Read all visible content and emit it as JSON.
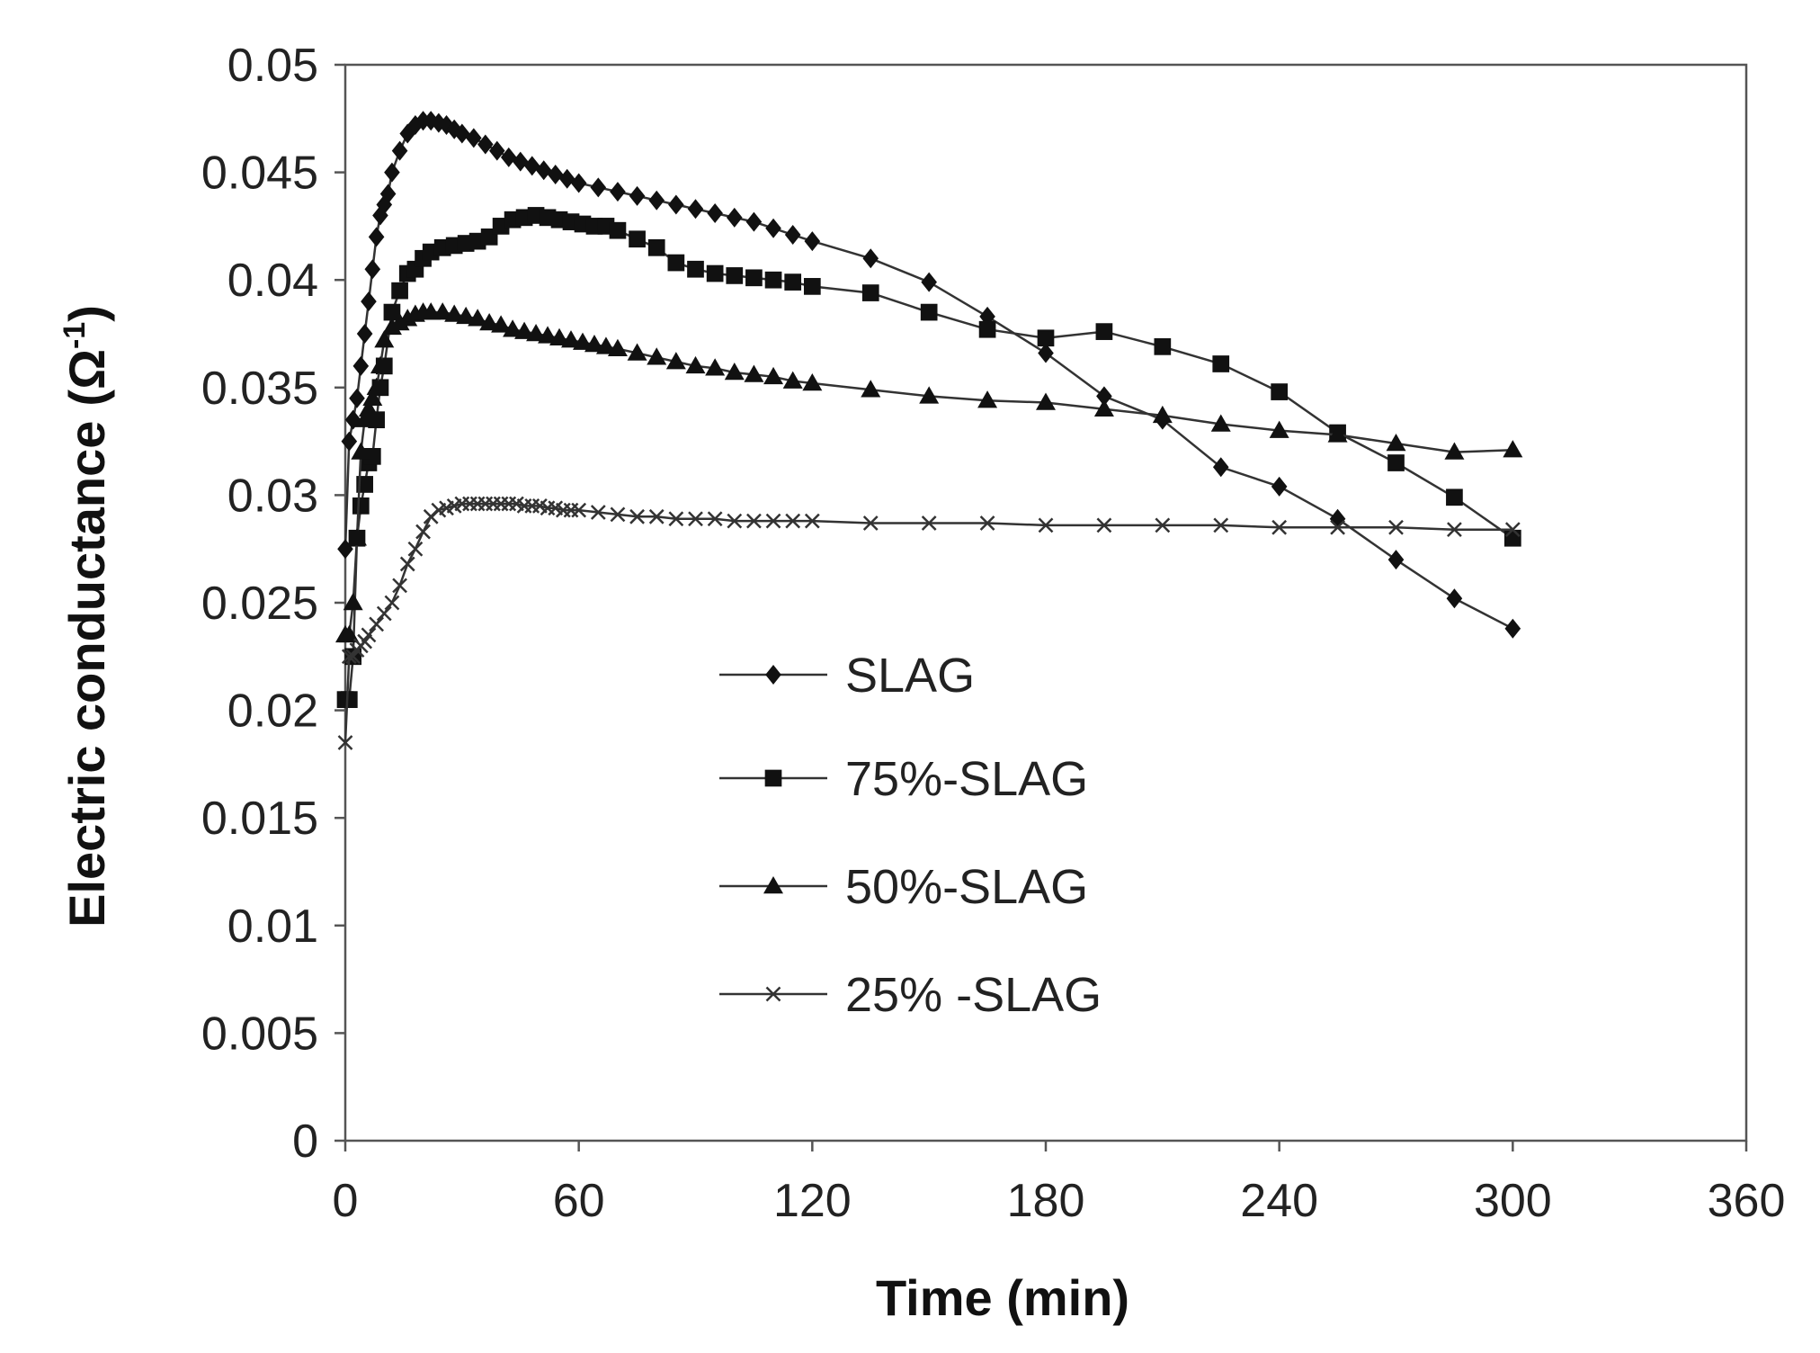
{
  "chart_data": {
    "type": "line",
    "title": "",
    "xlabel": "Time (min)",
    "ylabel": "Electric conductance",
    "ylabel_unit_base": "Ω",
    "ylabel_unit_exp": "-1",
    "xlim": [
      0,
      360
    ],
    "ylim": [
      0,
      0.05
    ],
    "xticks": [
      0,
      60,
      120,
      180,
      240,
      300,
      360
    ],
    "ytick_labels": [
      "0",
      "0.005",
      "0.01",
      "0.015",
      "0.02",
      "0.025",
      "0.03",
      "0.035",
      "0.04",
      "0.045",
      "0.05"
    ],
    "grid": false,
    "legend_position": "center-left",
    "series": [
      {
        "name": "SLAG",
        "marker": "diamond",
        "x": [
          0,
          1,
          2,
          3,
          4,
          5,
          6,
          7,
          8,
          9,
          10,
          11,
          12,
          14,
          16,
          18,
          20,
          22,
          24,
          26,
          28,
          30,
          33,
          36,
          39,
          42,
          45,
          48,
          51,
          54,
          57,
          60,
          65,
          70,
          75,
          80,
          85,
          90,
          95,
          100,
          105,
          110,
          115,
          120,
          135,
          150,
          165,
          180,
          195,
          210,
          225,
          240,
          255,
          270,
          285,
          300
        ],
        "values": [
          0.0275,
          0.0325,
          0.0335,
          0.0345,
          0.036,
          0.0375,
          0.039,
          0.0405,
          0.042,
          0.043,
          0.0435,
          0.044,
          0.045,
          0.046,
          0.0468,
          0.0472,
          0.0474,
          0.0474,
          0.0473,
          0.0472,
          0.047,
          0.0468,
          0.0466,
          0.0463,
          0.046,
          0.0457,
          0.0455,
          0.0453,
          0.0451,
          0.0449,
          0.0447,
          0.0445,
          0.0443,
          0.0441,
          0.0439,
          0.0437,
          0.0435,
          0.0433,
          0.0431,
          0.0429,
          0.0427,
          0.0424,
          0.0421,
          0.0418,
          0.041,
          0.0399,
          0.0383,
          0.0366,
          0.0346,
          0.0335,
          0.0313,
          0.0304,
          0.0289,
          0.027,
          0.0252,
          0.0238
        ]
      },
      {
        "name": "75%-SLAG",
        "marker": "square",
        "x": [
          0,
          1,
          2,
          3,
          4,
          5,
          6,
          7,
          8,
          9,
          10,
          12,
          14,
          16,
          18,
          20,
          22,
          25,
          28,
          31,
          34,
          37,
          40,
          43,
          46,
          49,
          52,
          55,
          58,
          61,
          64,
          67,
          70,
          75,
          80,
          85,
          90,
          95,
          100,
          105,
          110,
          115,
          120,
          135,
          150,
          165,
          180,
          195,
          210,
          225,
          240,
          255,
          270,
          285,
          300
        ],
        "values": [
          0.0205,
          0.0205,
          0.0225,
          0.028,
          0.0295,
          0.0305,
          0.0315,
          0.0318,
          0.0335,
          0.035,
          0.036,
          0.0385,
          0.0395,
          0.0403,
          0.0405,
          0.041,
          0.0413,
          0.0415,
          0.0416,
          0.0417,
          0.0418,
          0.042,
          0.0425,
          0.0428,
          0.0429,
          0.043,
          0.0429,
          0.0428,
          0.0427,
          0.0426,
          0.0425,
          0.0425,
          0.0423,
          0.0419,
          0.0415,
          0.0408,
          0.0405,
          0.0403,
          0.0402,
          0.0401,
          0.04,
          0.0399,
          0.0397,
          0.0394,
          0.0385,
          0.0377,
          0.0373,
          0.0376,
          0.0369,
          0.0361,
          0.0348,
          0.0329,
          0.0315,
          0.0299,
          0.028
        ]
      },
      {
        "name": "50%-SLAG",
        "marker": "triangle",
        "x": [
          0,
          1,
          2,
          3,
          4,
          5,
          6,
          7,
          8,
          9,
          10,
          12,
          14,
          16,
          18,
          20,
          22,
          25,
          28,
          31,
          34,
          37,
          40,
          43,
          46,
          49,
          52,
          55,
          58,
          61,
          64,
          67,
          70,
          75,
          80,
          85,
          90,
          95,
          100,
          105,
          110,
          115,
          120,
          135,
          150,
          165,
          180,
          195,
          210,
          225,
          240,
          255,
          270,
          285,
          300
        ],
        "values": [
          0.0235,
          0.0235,
          0.025,
          0.028,
          0.032,
          0.0335,
          0.034,
          0.0345,
          0.035,
          0.036,
          0.0372,
          0.0378,
          0.038,
          0.0382,
          0.0384,
          0.0385,
          0.0385,
          0.0385,
          0.0384,
          0.0383,
          0.0382,
          0.038,
          0.0379,
          0.0377,
          0.0376,
          0.0375,
          0.0374,
          0.0373,
          0.0372,
          0.0371,
          0.037,
          0.0369,
          0.0368,
          0.0366,
          0.0364,
          0.0362,
          0.036,
          0.0359,
          0.0357,
          0.0356,
          0.0355,
          0.0353,
          0.0352,
          0.0349,
          0.0346,
          0.0344,
          0.0343,
          0.034,
          0.0337,
          0.0333,
          0.033,
          0.0328,
          0.0324,
          0.032,
          0.0321
        ]
      },
      {
        "name": "25% -SLAG",
        "marker": "x",
        "x": [
          0,
          1,
          2,
          3,
          4,
          5,
          6,
          8,
          10,
          12,
          14,
          16,
          18,
          20,
          22,
          24,
          26,
          28,
          30,
          32,
          34,
          36,
          38,
          40,
          42,
          44,
          46,
          48,
          50,
          52,
          54,
          56,
          58,
          60,
          65,
          70,
          75,
          80,
          85,
          90,
          95,
          100,
          105,
          110,
          115,
          120,
          135,
          150,
          165,
          180,
          195,
          210,
          225,
          240,
          255,
          270,
          285,
          300
        ],
        "values": [
          0.0185,
          0.0225,
          0.0225,
          0.0228,
          0.023,
          0.0232,
          0.0235,
          0.024,
          0.0245,
          0.025,
          0.0258,
          0.0268,
          0.0275,
          0.0283,
          0.029,
          0.0293,
          0.0294,
          0.0295,
          0.0296,
          0.0296,
          0.0296,
          0.0296,
          0.0296,
          0.0296,
          0.0296,
          0.0296,
          0.0295,
          0.0295,
          0.0295,
          0.0294,
          0.0294,
          0.0293,
          0.0293,
          0.0293,
          0.0292,
          0.0291,
          0.029,
          0.029,
          0.0289,
          0.0289,
          0.0289,
          0.0288,
          0.0288,
          0.0288,
          0.0288,
          0.0288,
          0.0287,
          0.0287,
          0.0287,
          0.0286,
          0.0286,
          0.0286,
          0.0286,
          0.0285,
          0.0285,
          0.0285,
          0.0284,
          0.0284
        ]
      }
    ]
  }
}
